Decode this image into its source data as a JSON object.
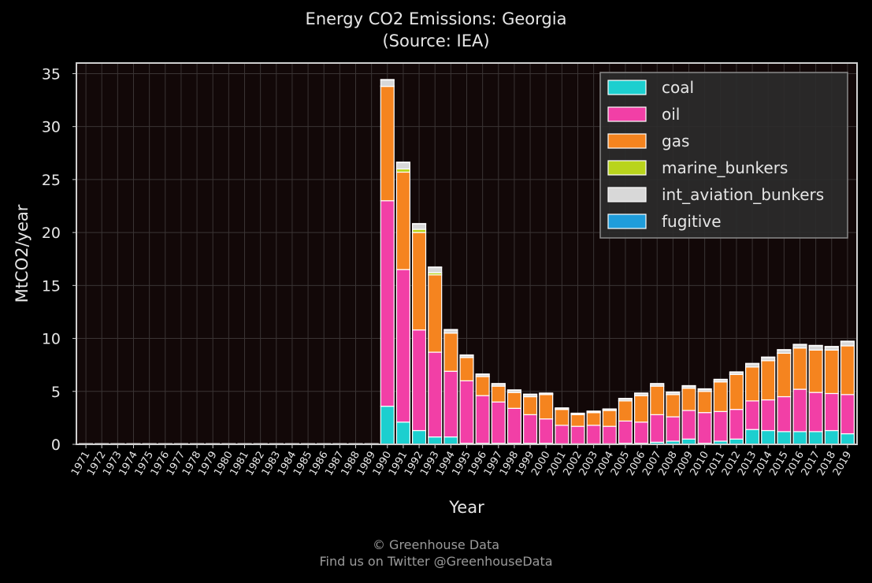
{
  "chart_data": {
    "type": "bar",
    "stacked": true,
    "title": "Energy CO2 Emissions: Georgia",
    "subtitle": "(Source: IEA)",
    "xlabel": "Year",
    "ylabel": "MtCO2/year",
    "ylim": [
      0,
      36
    ],
    "yticks": [
      0,
      5,
      10,
      15,
      20,
      25,
      30,
      35
    ],
    "grid": true,
    "legend_position": "top-right",
    "categories": [
      "1971",
      "1972",
      "1973",
      "1974",
      "1975",
      "1976",
      "1977",
      "1978",
      "1979",
      "1980",
      "1981",
      "1982",
      "1983",
      "1984",
      "1985",
      "1986",
      "1987",
      "1988",
      "1989",
      "1990",
      "1991",
      "1992",
      "1993",
      "1994",
      "1995",
      "1996",
      "1997",
      "1998",
      "1999",
      "2000",
      "2001",
      "2002",
      "2003",
      "2004",
      "2005",
      "2006",
      "2007",
      "2008",
      "2009",
      "2010",
      "2011",
      "2012",
      "2013",
      "2014",
      "2015",
      "2016",
      "2017",
      "2018",
      "2019"
    ],
    "series": [
      {
        "name": "coal",
        "color": "#1ccfcf",
        "values": [
          0,
          0,
          0,
          0,
          0,
          0,
          0,
          0,
          0,
          0,
          0,
          0,
          0,
          0,
          0,
          0,
          0,
          0,
          0,
          3.6,
          2.1,
          1.3,
          0.7,
          0.7,
          0.1,
          0.1,
          0.1,
          0.1,
          0.1,
          0.1,
          0.05,
          0.05,
          0.05,
          0.05,
          0.1,
          0.1,
          0.2,
          0.3,
          0.5,
          0.1,
          0.3,
          0.5,
          1.4,
          1.3,
          1.2,
          1.2,
          1.2,
          1.3,
          1.0
        ]
      },
      {
        "name": "oil",
        "color": "#f23fa6",
        "values": [
          0,
          0,
          0,
          0,
          0,
          0,
          0,
          0,
          0,
          0,
          0,
          0,
          0,
          0,
          0,
          0,
          0,
          0,
          0,
          19.4,
          14.4,
          9.5,
          8.0,
          6.2,
          5.9,
          4.5,
          3.9,
          3.3,
          2.7,
          2.3,
          1.75,
          1.65,
          1.75,
          1.65,
          2.1,
          2.0,
          2.6,
          2.3,
          2.7,
          2.9,
          2.8,
          2.8,
          2.7,
          2.9,
          3.3,
          4.0,
          3.7,
          3.5,
          3.7
        ]
      },
      {
        "name": "gas",
        "color": "#f5841f",
        "values": [
          0,
          0,
          0,
          0,
          0,
          0,
          0,
          0,
          0,
          0,
          0,
          0,
          0,
          0,
          0,
          0,
          0,
          0,
          0,
          10.8,
          9.2,
          9.2,
          7.3,
          3.6,
          2.2,
          1.8,
          1.5,
          1.5,
          1.7,
          2.3,
          1.5,
          1.1,
          1.2,
          1.5,
          1.9,
          2.5,
          2.7,
          2.1,
          2.1,
          2.0,
          2.8,
          3.3,
          3.2,
          3.7,
          4.1,
          3.9,
          4.0,
          4.1,
          4.6
        ]
      },
      {
        "name": "marine_bunkers",
        "color": "#b9d41c",
        "values": [
          0,
          0,
          0,
          0,
          0,
          0,
          0,
          0,
          0,
          0,
          0,
          0,
          0,
          0,
          0,
          0,
          0,
          0,
          0,
          0,
          0.3,
          0.3,
          0.2,
          0,
          0,
          0,
          0,
          0,
          0,
          0,
          0,
          0,
          0,
          0,
          0,
          0,
          0,
          0,
          0,
          0,
          0,
          0,
          0,
          0,
          0,
          0,
          0,
          0,
          0
        ]
      },
      {
        "name": "int_aviation_bunkers",
        "color": "#d8d8d8",
        "values": [
          0,
          0,
          0,
          0,
          0,
          0,
          0,
          0,
          0,
          0,
          0,
          0,
          0,
          0,
          0,
          0,
          0,
          0,
          0,
          0.6,
          0.6,
          0.5,
          0.5,
          0.3,
          0.2,
          0.2,
          0.2,
          0.2,
          0.2,
          0.1,
          0.1,
          0.1,
          0.1,
          0.1,
          0.2,
          0.2,
          0.2,
          0.2,
          0.2,
          0.2,
          0.2,
          0.2,
          0.3,
          0.3,
          0.3,
          0.3,
          0.4,
          0.3,
          0.4
        ]
      },
      {
        "name": "fugitive",
        "color": "#1f9ddb",
        "values": [
          0,
          0,
          0,
          0,
          0,
          0,
          0,
          0,
          0,
          0,
          0,
          0,
          0,
          0,
          0,
          0,
          0,
          0,
          0,
          0,
          0,
          0,
          0,
          0,
          0,
          0,
          0,
          0,
          0,
          0,
          0,
          0,
          0,
          0,
          0,
          0,
          0,
          0,
          0,
          0,
          0,
          0,
          0,
          0,
          0,
          0,
          0,
          0,
          0
        ]
      }
    ]
  },
  "footer": {
    "line1": "© Greenhouse Data",
    "line2": "Find us on Twitter @GreenhouseData"
  }
}
